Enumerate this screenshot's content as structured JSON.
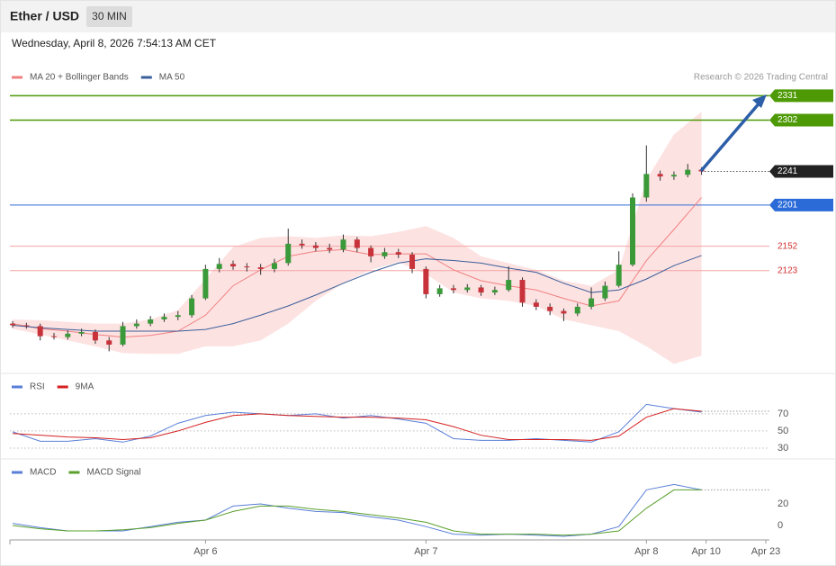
{
  "header": {
    "title": "Ether / USD",
    "interval": "30 MIN",
    "timestamp": "Wednesday, April 8, 2026 7:54:13 AM CET"
  },
  "chart_data": [
    {
      "type": "candlestick",
      "source": "Research © 2026 Trading Central",
      "xlim": [
        -0.6,
        164
      ],
      "ylim": [
        2020,
        2370
      ],
      "x": [
        0,
        3,
        6,
        9,
        12,
        15,
        18,
        21,
        24,
        27,
        30,
        33,
        36,
        39,
        42,
        45,
        48,
        51,
        54,
        57,
        60,
        63,
        66,
        69,
        72,
        75,
        78,
        81,
        84,
        87,
        90,
        93,
        96,
        99,
        102,
        105,
        108,
        111,
        114,
        117,
        120,
        123,
        126,
        129,
        132,
        135,
        138,
        141,
        144,
        147,
        150
      ],
      "ohlc": [
        [
          2060,
          2063,
          2055,
          2058
        ],
        [
          2058,
          2061,
          2054,
          2057
        ],
        [
          2057,
          2060,
          2040,
          2045
        ],
        [
          2045,
          2049,
          2041,
          2044
        ],
        [
          2044,
          2052,
          2041,
          2048
        ],
        [
          2048,
          2054,
          2045,
          2050
        ],
        [
          2050,
          2053,
          2036,
          2040
        ],
        [
          2040,
          2044,
          2027,
          2035
        ],
        [
          2035,
          2062,
          2033,
          2057
        ],
        [
          2057,
          2065,
          2054,
          2060
        ],
        [
          2060,
          2069,
          2057,
          2065
        ],
        [
          2065,
          2072,
          2062,
          2068
        ],
        [
          2068,
          2075,
          2064,
          2070
        ],
        [
          2070,
          2094,
          2067,
          2090
        ],
        [
          2090,
          2130,
          2088,
          2125
        ],
        [
          2125,
          2138,
          2121,
          2131
        ],
        [
          2131,
          2135,
          2124,
          2128
        ],
        [
          2128,
          2132,
          2122,
          2127
        ],
        [
          2127,
          2131,
          2118,
          2125
        ],
        [
          2125,
          2137,
          2121,
          2132
        ],
        [
          2132,
          2173,
          2129,
          2155
        ],
        [
          2155,
          2160,
          2149,
          2153
        ],
        [
          2153,
          2157,
          2146,
          2150
        ],
        [
          2150,
          2155,
          2144,
          2148
        ],
        [
          2148,
          2166,
          2145,
          2160
        ],
        [
          2160,
          2163,
          2145,
          2150
        ],
        [
          2150,
          2153,
          2133,
          2140
        ],
        [
          2140,
          2150,
          2137,
          2145
        ],
        [
          2145,
          2149,
          2138,
          2142
        ],
        [
          2142,
          2145,
          2120,
          2125
        ],
        [
          2125,
          2128,
          2090,
          2095
        ],
        [
          2095,
          2106,
          2092,
          2102
        ],
        [
          2102,
          2106,
          2096,
          2100
        ],
        [
          2100,
          2107,
          2097,
          2103
        ],
        [
          2103,
          2106,
          2093,
          2097
        ],
        [
          2097,
          2104,
          2094,
          2100
        ],
        [
          2100,
          2128,
          2098,
          2112
        ],
        [
          2112,
          2115,
          2080,
          2085
        ],
        [
          2085,
          2089,
          2076,
          2080
        ],
        [
          2080,
          2084,
          2070,
          2075
        ],
        [
          2075,
          2078,
          2063,
          2072
        ],
        [
          2072,
          2084,
          2069,
          2080
        ],
        [
          2080,
          2103,
          2077,
          2090
        ],
        [
          2090,
          2110,
          2087,
          2105
        ],
        [
          2105,
          2146,
          2103,
          2130
        ],
        [
          2130,
          2215,
          2128,
          2210
        ],
        [
          2210,
          2272,
          2205,
          2238
        ],
        [
          2238,
          2242,
          2230,
          2235
        ],
        [
          2235,
          2241,
          2231,
          2237
        ],
        [
          2237,
          2250,
          2234,
          2243
        ],
        [
          2243,
          2246,
          2237,
          2241
        ]
      ],
      "up_color": "#3a9a3a",
      "down_color": "#c8323a",
      "series": [
        {
          "name": "MA 20 + Bollinger Bands",
          "color": "#f08080",
          "x": [
            0,
            6,
            12,
            18,
            24,
            30,
            36,
            42,
            48,
            54,
            60,
            66,
            72,
            78,
            84,
            90,
            96,
            102,
            108,
            114,
            120,
            126,
            132,
            138,
            144,
            150
          ],
          "values": [
            2060,
            2054,
            2051,
            2047,
            2044,
            2046,
            2051,
            2070,
            2105,
            2124,
            2140,
            2146,
            2148,
            2142,
            2143,
            2143,
            2124,
            2111,
            2105,
            2100,
            2090,
            2081,
            2087,
            2135,
            2172,
            2210
          ],
          "upper": [
            2065,
            2064,
            2062,
            2060,
            2060,
            2065,
            2076,
            2113,
            2151,
            2162,
            2164,
            2162,
            2165,
            2164,
            2169,
            2176,
            2162,
            2140,
            2132,
            2124,
            2111,
            2105,
            2124,
            2231,
            2285,
            2312
          ],
          "lower": [
            2054,
            2047,
            2040,
            2033,
            2025,
            2024,
            2024,
            2033,
            2033,
            2040,
            2060,
            2087,
            2108,
            2124,
            2133,
            2119,
            2097,
            2090,
            2087,
            2081,
            2065,
            2058,
            2051,
            2033,
            2012,
            2022
          ],
          "band_color": "#fde2e2"
        },
        {
          "name": "MA 50",
          "color": "#3a5f9a",
          "x": [
            0,
            6,
            12,
            18,
            24,
            30,
            36,
            42,
            48,
            54,
            60,
            66,
            72,
            78,
            84,
            90,
            96,
            102,
            108,
            114,
            120,
            126,
            132,
            138,
            144,
            150
          ],
          "values": [
            2058,
            2055,
            2053,
            2051,
            2051,
            2051,
            2051,
            2053,
            2060,
            2070,
            2081,
            2094,
            2108,
            2121,
            2132,
            2137,
            2135,
            2132,
            2126,
            2121,
            2108,
            2097,
            2100,
            2113,
            2129,
            2141
          ]
        }
      ],
      "levels": [
        {
          "value": 2331,
          "color": "#4e9a06",
          "style": "box"
        },
        {
          "value": 2302,
          "color": "#4e9a06",
          "style": "box"
        },
        {
          "value": 2241,
          "color": "#222222",
          "style": "current"
        },
        {
          "value": 2201,
          "color": "#2a6bd8",
          "style": "box"
        },
        {
          "value": 2152,
          "color": "#f5a3a3",
          "text_color": "#d03030",
          "style": "text"
        },
        {
          "value": 2123,
          "color": "#f5a3a3",
          "text_color": "#d03030",
          "style": "text"
        }
      ]
    },
    {
      "type": "line",
      "xlim": [
        -0.6,
        164
      ],
      "ylim": [
        20,
        115
      ],
      "yticks": [
        30,
        50,
        70
      ],
      "grid": true,
      "x": [
        0,
        6,
        12,
        18,
        24,
        30,
        36,
        42,
        48,
        54,
        60,
        66,
        72,
        78,
        84,
        90,
        96,
        102,
        108,
        114,
        120,
        126,
        132,
        138,
        144,
        150
      ],
      "series": [
        {
          "name": "RSI",
          "color": "#5a7fd8",
          "values": [
            49,
            38,
            38,
            41,
            37,
            44,
            59,
            68,
            72,
            70,
            68,
            70,
            65,
            68,
            64,
            59,
            41,
            39,
            39,
            41,
            39,
            37,
            49,
            81,
            76,
            72
          ]
        },
        {
          "name": "9MA",
          "color": "#d42020",
          "values": [
            47,
            45,
            43,
            42,
            40,
            42,
            50,
            60,
            68,
            70,
            68,
            67,
            66,
            66,
            65,
            63,
            55,
            45,
            40,
            40,
            40,
            39,
            44,
            66,
            76,
            73
          ]
        }
      ]
    },
    {
      "type": "line",
      "xlim": [
        -0.6,
        164
      ],
      "ylim": [
        -12,
        55
      ],
      "yticks": [
        0,
        20
      ],
      "grid": false,
      "x": [
        0,
        6,
        12,
        18,
        24,
        30,
        36,
        42,
        48,
        54,
        60,
        66,
        72,
        78,
        84,
        90,
        96,
        102,
        108,
        114,
        120,
        126,
        132,
        138,
        144,
        150
      ],
      "xticks": [
        {
          "value": 42,
          "label": "Apr 6"
        },
        {
          "value": 90,
          "label": "Apr 7"
        },
        {
          "value": 138,
          "label": "Apr 8"
        },
        {
          "value": 151,
          "label": "Apr 10"
        },
        {
          "value": 164,
          "label": "Apr 23"
        }
      ],
      "series": [
        {
          "name": "MACD",
          "color": "#5a7fd8",
          "values": [
            2,
            -2,
            -5,
            -5,
            -5,
            -1,
            3,
            5,
            18,
            20,
            16,
            13,
            12,
            8,
            5,
            -1,
            -8,
            -9,
            -8,
            -9,
            -10,
            -8,
            -1,
            33,
            38,
            33
          ]
        },
        {
          "name": "MACD Signal",
          "color": "#5aa02a",
          "values": [
            0,
            -3,
            -5,
            -5,
            -4,
            -2,
            2,
            5,
            13,
            18,
            18,
            15,
            13,
            10,
            7,
            3,
            -5,
            -8,
            -8,
            -8,
            -9,
            -8,
            -5,
            16,
            33,
            33
          ]
        }
      ]
    }
  ]
}
